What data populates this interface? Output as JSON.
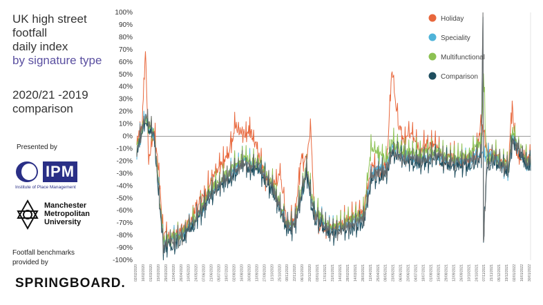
{
  "panel": {
    "title_lines": [
      "UK high street",
      "footfall",
      "daily index",
      "by signature type"
    ],
    "subtitle_lines": [
      "2020/21 -2019",
      "comparison"
    ],
    "presented_by": "Presented by",
    "ipm_mark": "IPM",
    "ipm_name": "Institute of Place Management",
    "mmu_lines": [
      "Manchester",
      "Metropolitan",
      "University"
    ],
    "benchmarks_lines": [
      "Footfall benchmarks",
      "provided by"
    ],
    "springboard": "SPRINGBOARD."
  },
  "colors": {
    "holiday": "#e8673c",
    "speciality": "#4fb3d9",
    "multifunctional": "#8cc152",
    "comparison": "#1f4e5f",
    "baseline": "#999999"
  },
  "chart_data": {
    "type": "line",
    "xlabel": "",
    "ylabel": "",
    "ylim": [
      -100,
      100
    ],
    "yticks": [
      "100%",
      "90%",
      "80%",
      "70%",
      "60%",
      "50%",
      "40%",
      "30%",
      "20%",
      "10%",
      "0%",
      "-10%",
      "-20%",
      "-30%",
      "-40%",
      "-50%",
      "-60%",
      "-70%",
      "-80%",
      "-90%",
      "-100%"
    ],
    "xlim_dates": [
      "2020-02-02",
      "2022-01-30"
    ],
    "legend_position": "top-right",
    "x_tick_labels": [
      "02/02/2020",
      "16/02/2020",
      "01/03/2020",
      "15/03/2020",
      "29/03/2020",
      "12/04/2020",
      "26/04/2020",
      "10/05/2020",
      "24/05/2020",
      "07/06/2020",
      "21/06/2020",
      "05/07/2020",
      "19/07/2020",
      "02/08/2020",
      "16/08/2020",
      "30/08/2020",
      "13/09/2020",
      "27/09/2020",
      "11/10/2020",
      "25/10/2020",
      "08/11/2020",
      "22/11/2020",
      "06/12/2020",
      "20/12/2020",
      "03/01/2021",
      "17/01/2021",
      "31/01/2021",
      "14/02/2021",
      "28/02/2021",
      "14/03/2021",
      "28/03/2021",
      "11/04/2021",
      "25/04/2021",
      "09/05/2021",
      "23/05/2021",
      "06/06/2021",
      "20/06/2021",
      "04/07/2021",
      "18/07/2021",
      "01/08/2021",
      "15/08/2021",
      "29/08/2021",
      "12/09/2021",
      "26/09/2021",
      "10/10/2021",
      "24/10/2021",
      "07/11/2021",
      "21/11/2021",
      "05/12/2021",
      "19/12/2021",
      "02/01/2022",
      "16/01/2022",
      "30/01/2022"
    ],
    "series": [
      {
        "name": "Holiday",
        "color": "#e8673c",
        "points": [
          [
            "2020-02-02",
            -5
          ],
          [
            "2020-02-12",
            10
          ],
          [
            "2020-02-18",
            72
          ],
          [
            "2020-02-24",
            -20
          ],
          [
            "2020-03-05",
            5
          ],
          [
            "2020-03-14",
            -30
          ],
          [
            "2020-03-22",
            -80
          ],
          [
            "2020-04-05",
            -82
          ],
          [
            "2020-04-20",
            -78
          ],
          [
            "2020-05-05",
            -72
          ],
          [
            "2020-05-20",
            -58
          ],
          [
            "2020-06-05",
            -48
          ],
          [
            "2020-06-20",
            -35
          ],
          [
            "2020-07-05",
            -25
          ],
          [
            "2020-07-20",
            -15
          ],
          [
            "2020-08-02",
            8
          ],
          [
            "2020-08-15",
            2
          ],
          [
            "2020-08-30",
            5
          ],
          [
            "2020-09-15",
            -15
          ],
          [
            "2020-09-27",
            -35
          ],
          [
            "2020-10-11",
            -40
          ],
          [
            "2020-10-25",
            -30
          ],
          [
            "2020-11-05",
            -70
          ],
          [
            "2020-11-20",
            -65
          ],
          [
            "2020-12-02",
            -18
          ],
          [
            "2020-12-12",
            -20
          ],
          [
            "2020-12-20",
            5
          ],
          [
            "2020-12-26",
            -60
          ],
          [
            "2021-01-05",
            -72
          ],
          [
            "2021-01-25",
            -74
          ],
          [
            "2021-02-14",
            -70
          ],
          [
            "2021-03-05",
            -66
          ],
          [
            "2021-03-28",
            -58
          ],
          [
            "2021-04-11",
            -25
          ],
          [
            "2021-04-25",
            -30
          ],
          [
            "2021-05-09",
            -22
          ],
          [
            "2021-05-19",
            55
          ],
          [
            "2021-05-30",
            10
          ],
          [
            "2021-06-10",
            -5
          ],
          [
            "2021-06-25",
            5
          ],
          [
            "2021-07-10",
            -10
          ],
          [
            "2021-07-25",
            -5
          ],
          [
            "2021-08-08",
            -8
          ],
          [
            "2021-08-22",
            -20
          ],
          [
            "2021-09-05",
            -15
          ],
          [
            "2021-09-20",
            -20
          ],
          [
            "2021-10-05",
            -18
          ],
          [
            "2021-10-20",
            -15
          ],
          [
            "2021-10-31",
            10
          ],
          [
            "2021-11-10",
            -10
          ],
          [
            "2021-11-25",
            -15
          ],
          [
            "2021-12-10",
            -20
          ],
          [
            "2021-12-20",
            -25
          ],
          [
            "2021-12-27",
            25
          ],
          [
            "2022-01-05",
            -18
          ],
          [
            "2022-01-20",
            -15
          ],
          [
            "2022-01-30",
            -20
          ]
        ]
      },
      {
        "name": "Speciality",
        "color": "#4fb3d9",
        "points": [
          [
            "2020-02-02",
            -10
          ],
          [
            "2020-02-18",
            15
          ],
          [
            "2020-03-05",
            0
          ],
          [
            "2020-03-22",
            -85
          ],
          [
            "2020-04-20",
            -82
          ],
          [
            "2020-05-20",
            -68
          ],
          [
            "2020-06-20",
            -45
          ],
          [
            "2020-07-20",
            -32
          ],
          [
            "2020-08-15",
            -20
          ],
          [
            "2020-09-15",
            -25
          ],
          [
            "2020-10-11",
            -42
          ],
          [
            "2020-11-05",
            -72
          ],
          [
            "2020-11-20",
            -70
          ],
          [
            "2020-12-12",
            -28
          ],
          [
            "2020-12-26",
            -62
          ],
          [
            "2021-01-25",
            -76
          ],
          [
            "2021-02-14",
            -74
          ],
          [
            "2021-03-28",
            -66
          ],
          [
            "2021-04-11",
            -30
          ],
          [
            "2021-05-09",
            -25
          ],
          [
            "2021-05-19",
            -10
          ],
          [
            "2021-06-10",
            -15
          ],
          [
            "2021-07-10",
            -18
          ],
          [
            "2021-08-08",
            -16
          ],
          [
            "2021-09-05",
            -20
          ],
          [
            "2021-10-05",
            -20
          ],
          [
            "2021-10-31",
            -12
          ],
          [
            "2021-11-25",
            -18
          ],
          [
            "2021-12-20",
            -28
          ],
          [
            "2021-12-27",
            0
          ],
          [
            "2022-01-20",
            -20
          ],
          [
            "2022-01-30",
            -22
          ]
        ]
      },
      {
        "name": "Multifunctional",
        "color": "#8cc152",
        "points": [
          [
            "2020-02-02",
            -8
          ],
          [
            "2020-02-18",
            14
          ],
          [
            "2020-03-05",
            2
          ],
          [
            "2020-03-22",
            -84
          ],
          [
            "2020-04-20",
            -80
          ],
          [
            "2020-05-20",
            -66
          ],
          [
            "2020-06-20",
            -42
          ],
          [
            "2020-07-20",
            -30
          ],
          [
            "2020-08-15",
            -18
          ],
          [
            "2020-09-15",
            -22
          ],
          [
            "2020-10-11",
            -40
          ],
          [
            "2020-11-05",
            -70
          ],
          [
            "2020-11-20",
            -68
          ],
          [
            "2020-12-12",
            -25
          ],
          [
            "2020-12-26",
            -60
          ],
          [
            "2021-01-25",
            -74
          ],
          [
            "2021-02-14",
            -72
          ],
          [
            "2021-03-28",
            -62
          ],
          [
            "2021-04-11",
            -8
          ],
          [
            "2021-05-09",
            -20
          ],
          [
            "2021-05-19",
            -5
          ],
          [
            "2021-06-10",
            -12
          ],
          [
            "2021-07-10",
            -14
          ],
          [
            "2021-08-08",
            -12
          ],
          [
            "2021-09-05",
            -16
          ],
          [
            "2021-10-05",
            -16
          ],
          [
            "2021-10-31",
            -5
          ],
          [
            "2021-11-04",
            50
          ],
          [
            "2021-11-10",
            -20
          ],
          [
            "2021-11-25",
            -15
          ],
          [
            "2021-12-20",
            -24
          ],
          [
            "2021-12-27",
            5
          ],
          [
            "2022-01-20",
            -18
          ],
          [
            "2022-01-30",
            -20
          ]
        ]
      },
      {
        "name": "Comparison",
        "color": "#1f4e5f",
        "points": [
          [
            "2020-02-02",
            -12
          ],
          [
            "2020-02-18",
            12
          ],
          [
            "2020-03-05",
            -2
          ],
          [
            "2020-03-22",
            -90
          ],
          [
            "2020-04-20",
            -86
          ],
          [
            "2020-05-20",
            -70
          ],
          [
            "2020-06-20",
            -48
          ],
          [
            "2020-07-20",
            -35
          ],
          [
            "2020-08-15",
            -25
          ],
          [
            "2020-09-15",
            -28
          ],
          [
            "2020-10-11",
            -45
          ],
          [
            "2020-11-05",
            -76
          ],
          [
            "2020-11-20",
            -74
          ],
          [
            "2020-12-12",
            -30
          ],
          [
            "2020-12-26",
            -66
          ],
          [
            "2021-01-25",
            -80
          ],
          [
            "2021-02-14",
            -78
          ],
          [
            "2021-03-28",
            -70
          ],
          [
            "2021-04-11",
            -35
          ],
          [
            "2021-05-09",
            -30
          ],
          [
            "2021-05-19",
            -15
          ],
          [
            "2021-06-10",
            -20
          ],
          [
            "2021-07-10",
            -22
          ],
          [
            "2021-08-08",
            -18
          ],
          [
            "2021-09-05",
            -24
          ],
          [
            "2021-10-05",
            -24
          ],
          [
            "2021-10-31",
            -18
          ],
          [
            "2021-11-03",
            100
          ],
          [
            "2021-11-04",
            -90
          ],
          [
            "2021-11-10",
            -25
          ],
          [
            "2021-11-25",
            -20
          ],
          [
            "2021-12-20",
            -30
          ],
          [
            "2021-12-27",
            -5
          ],
          [
            "2022-01-20",
            -22
          ],
          [
            "2022-01-30",
            -24
          ]
        ]
      }
    ],
    "grey_overlay_series": {
      "color": "#6b6b6b"
    }
  }
}
